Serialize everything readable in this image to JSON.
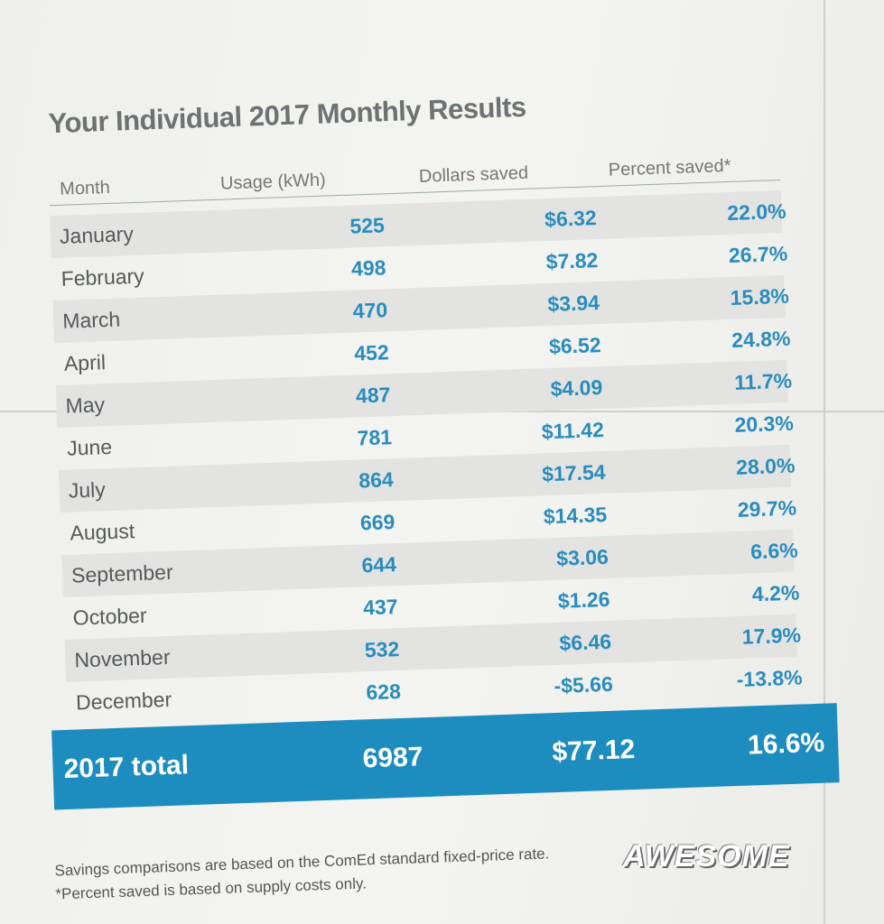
{
  "header": {
    "title": "Your Individual 2017 Monthly Results"
  },
  "table": {
    "columns": [
      "Month",
      "Usage (kWh)",
      "Dollars saved",
      "Percent saved*"
    ],
    "rows": [
      [
        "January",
        "525",
        "$6.32",
        "22.0%"
      ],
      [
        "February",
        "498",
        "$7.82",
        "26.7%"
      ],
      [
        "March",
        "470",
        "$3.94",
        "15.8%"
      ],
      [
        "April",
        "452",
        "$6.52",
        "24.8%"
      ],
      [
        "May",
        "487",
        "$4.09",
        "11.7%"
      ],
      [
        "June",
        "781",
        "$11.42",
        "20.3%"
      ],
      [
        "July",
        "864",
        "$17.54",
        "28.0%"
      ],
      [
        "August",
        "669",
        "$14.35",
        "29.7%"
      ],
      [
        "September",
        "644",
        "$3.06",
        "6.6%"
      ],
      [
        "October",
        "437",
        "$1.26",
        "4.2%"
      ],
      [
        "November",
        "532",
        "$6.46",
        "17.9%"
      ],
      [
        "December",
        "628",
        "-$5.66",
        "-13.8%"
      ]
    ],
    "total": [
      "2017 total",
      "6987",
      "$77.12",
      "16.6%"
    ]
  },
  "footnotes": [
    "Savings comparisons are based on the ComEd standard fixed-price rate.",
    "*Percent saved is based on supply costs only."
  ],
  "sticker": "AWESOME"
}
